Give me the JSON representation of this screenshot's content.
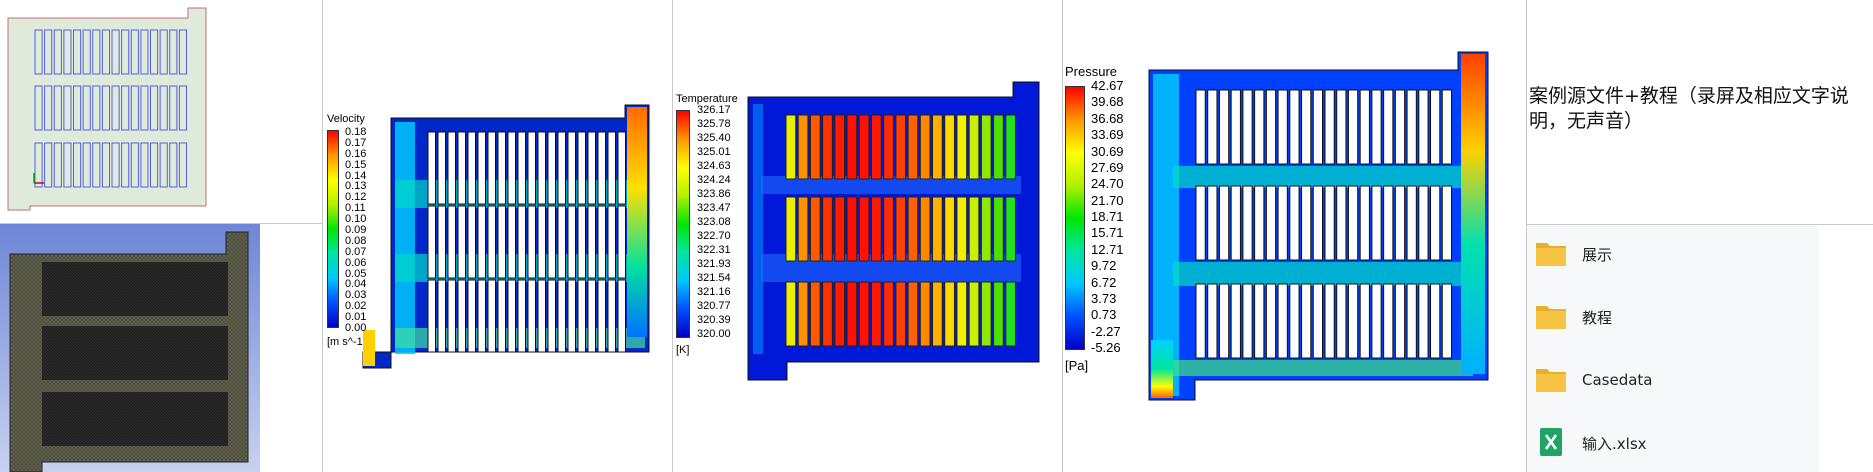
{
  "panels": {
    "velocity": {
      "title": "Velocity",
      "unit": "[m s^-1]",
      "ticks": [
        "0.18",
        "0.17",
        "0.16",
        "0.15",
        "0.14",
        "0.13",
        "0.12",
        "0.11",
        "0.10",
        "0.09",
        "0.08",
        "0.07",
        "0.06",
        "0.05",
        "0.04",
        "0.03",
        "0.02",
        "0.01",
        "0.00"
      ]
    },
    "temperature": {
      "title": "Temperature",
      "unit": "[K]",
      "ticks": [
        "326.17",
        "325.78",
        "325.40",
        "325.01",
        "324.63",
        "324.24",
        "323.86",
        "323.47",
        "323.08",
        "322.70",
        "322.31",
        "321.93",
        "321.54",
        "321.16",
        "320.77",
        "320.39",
        "320.00"
      ]
    },
    "pressure": {
      "title": "Pressure",
      "unit": "[Pa]",
      "ticks": [
        "42.67",
        "39.68",
        "36.68",
        "33.69",
        "30.69",
        "27.69",
        "24.70",
        "21.70",
        "18.71",
        "15.71",
        "12.71",
        "9.72",
        "6.72",
        "3.73",
        "0.73",
        "-2.27",
        "-5.26"
      ]
    }
  },
  "description": "案例源文件+教程（录屏及相应文字说明，无声音）",
  "files": [
    {
      "name": "展示",
      "icon": "folder-icon"
    },
    {
      "name": "教程",
      "icon": "folder-icon"
    },
    {
      "name": "Casedata",
      "icon": "folder-icon"
    },
    {
      "name": "输入.xlsx",
      "icon": "excel-file-icon"
    }
  ],
  "colors": {
    "rainbow": [
      "#0000c8",
      "#0050ff",
      "#00c8ff",
      "#00e6a0",
      "#00e600",
      "#b4f000",
      "#ffff00",
      "#ff9600",
      "#ff0000"
    ],
    "folder": "#f6c344",
    "excel": "#21a366"
  }
}
